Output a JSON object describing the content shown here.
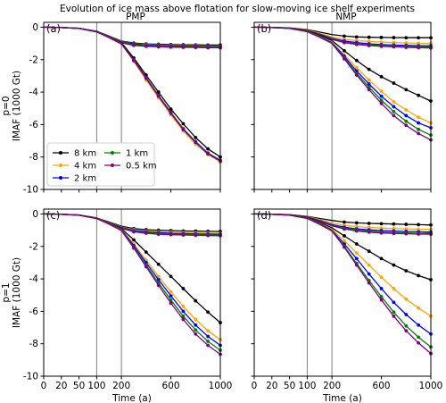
{
  "figure": {
    "title": "Evolution of ice mass above flotation for slow-moving ice shelf experiments"
  },
  "colors": {
    "8 km": "#000000",
    "4 km": "#ffa500",
    "2 km": "#0000ff",
    "1 km": "#008000",
    "0.5 km": "#800080",
    "vline": "#808080"
  },
  "chart_data": [
    {
      "type": "line",
      "panel": "(a)",
      "col_title": "PMP",
      "ylabel": "p=0\nIMAF (1000 Gt)",
      "xlabel": "",
      "xlim": [
        0,
        1000
      ],
      "ylim": [
        -10,
        0.3
      ],
      "xticks": [
        0,
        20,
        50,
        100,
        200,
        600,
        1000
      ],
      "xtick_labels": [
        "",
        "",
        "",
        "",
        "",
        "",
        ""
      ],
      "yticks": [
        0,
        -2,
        -4,
        -6,
        -8,
        -10
      ],
      "vlines": [
        100,
        200
      ],
      "legend": {
        "placement": "lower-left",
        "columns": 2,
        "entries": [
          "8 km",
          "4 km",
          "2 km",
          "1 km",
          "0.5 km"
        ]
      },
      "x": [
        0,
        20,
        50,
        100,
        150,
        200,
        300,
        400,
        500,
        600,
        700,
        800,
        900,
        1000
      ],
      "series": [
        {
          "name": "8 km",
          "values": [
            0,
            -0.02,
            -0.07,
            -0.25,
            -0.55,
            -0.85,
            -0.98,
            -1.03,
            -1.05,
            -1.07,
            -1.08,
            -1.09,
            -1.1,
            -1.1
          ]
        },
        {
          "name": "4 km",
          "values": [
            0,
            -0.02,
            -0.07,
            -0.26,
            -0.57,
            -0.88,
            -1.02,
            -1.07,
            -1.1,
            -1.12,
            -1.14,
            -1.15,
            -1.16,
            -1.17
          ]
        },
        {
          "name": "2 km",
          "values": [
            0,
            -0.02,
            -0.07,
            -0.27,
            -0.58,
            -0.9,
            -1.04,
            -1.1,
            -1.13,
            -1.15,
            -1.17,
            -1.18,
            -1.19,
            -1.2
          ]
        },
        {
          "name": "1 km",
          "values": [
            0,
            -0.02,
            -0.08,
            -0.28,
            -0.6,
            -0.93,
            -1.08,
            -1.14,
            -1.17,
            -1.19,
            -1.21,
            -1.22,
            -1.23,
            -1.24
          ]
        },
        {
          "name": "0.5 km",
          "values": [
            0,
            -0.02,
            -0.08,
            -0.29,
            -0.62,
            -0.96,
            -1.12,
            -1.18,
            -1.21,
            -1.23,
            -1.24,
            -1.25,
            -1.26,
            -1.27
          ]
        },
        {
          "name": "8 km",
          "values": [
            0,
            -0.02,
            -0.07,
            -0.25,
            -0.6,
            -0.95,
            -1.9,
            -2.95,
            -4.0,
            -5.05,
            -5.95,
            -6.8,
            -7.5,
            -8.0
          ]
        },
        {
          "name": "4 km",
          "values": [
            0,
            -0.02,
            -0.07,
            -0.26,
            -0.62,
            -1.0,
            -2.1,
            -3.25,
            -4.35,
            -5.4,
            -6.4,
            -7.2,
            -7.85,
            -8.3
          ]
        },
        {
          "name": "2 km",
          "values": [
            0,
            -0.02,
            -0.07,
            -0.27,
            -0.63,
            -1.02,
            -2.05,
            -3.15,
            -4.25,
            -5.3,
            -6.3,
            -7.1,
            -7.8,
            -8.25
          ]
        },
        {
          "name": "1 km",
          "values": [
            0,
            -0.02,
            -0.08,
            -0.28,
            -0.64,
            -1.03,
            -2.0,
            -3.1,
            -4.2,
            -5.25,
            -6.25,
            -7.05,
            -7.75,
            -8.2
          ]
        },
        {
          "name": "0.5 km",
          "values": [
            0,
            -0.02,
            -0.08,
            -0.29,
            -0.65,
            -1.04,
            -2.02,
            -3.12,
            -4.22,
            -5.27,
            -6.27,
            -7.07,
            -7.77,
            -8.22
          ]
        }
      ]
    },
    {
      "type": "line",
      "panel": "(b)",
      "col_title": "NMP",
      "ylabel": "",
      "xlabel": "",
      "xlim": [
        0,
        1000
      ],
      "ylim": [
        -10,
        0.3
      ],
      "xticks": [
        0,
        20,
        50,
        100,
        200,
        600,
        1000
      ],
      "xtick_labels": [
        "",
        "",
        "",
        "",
        "",
        "",
        ""
      ],
      "yticks": [
        0,
        -2,
        -4,
        -6,
        -8,
        -10
      ],
      "ytick_labels": [
        "",
        "",
        "",
        "",
        "",
        ""
      ],
      "vlines": [
        100,
        200
      ],
      "x": [
        0,
        20,
        50,
        100,
        150,
        200,
        300,
        400,
        500,
        600,
        700,
        800,
        900,
        1000
      ],
      "series": [
        {
          "name": "8 km",
          "values": [
            0,
            -0.01,
            -0.04,
            -0.15,
            -0.3,
            -0.45,
            -0.55,
            -0.6,
            -0.62,
            -0.63,
            -0.64,
            -0.65,
            -0.65,
            -0.65
          ]
        },
        {
          "name": "4 km",
          "values": [
            0,
            -0.01,
            -0.05,
            -0.18,
            -0.38,
            -0.6,
            -0.75,
            -0.83,
            -0.88,
            -0.92,
            -0.95,
            -0.97,
            -0.99,
            -1.0
          ]
        },
        {
          "name": "2 km",
          "values": [
            0,
            -0.01,
            -0.05,
            -0.2,
            -0.42,
            -0.68,
            -0.85,
            -0.95,
            -1.02,
            -1.07,
            -1.1,
            -1.12,
            -1.14,
            -1.15
          ]
        },
        {
          "name": "1 km",
          "values": [
            0,
            -0.01,
            -0.05,
            -0.21,
            -0.45,
            -0.72,
            -0.92,
            -1.02,
            -1.09,
            -1.13,
            -1.16,
            -1.18,
            -1.2,
            -1.22
          ]
        },
        {
          "name": "0.5 km",
          "values": [
            0,
            -0.01,
            -0.05,
            -0.22,
            -0.47,
            -0.75,
            -0.95,
            -1.06,
            -1.13,
            -1.18,
            -1.21,
            -1.24,
            -1.26,
            -1.28
          ]
        },
        {
          "name": "8 km",
          "values": [
            0,
            -0.02,
            -0.06,
            -0.22,
            -0.5,
            -0.82,
            -1.45,
            -2.05,
            -2.6,
            -3.05,
            -3.45,
            -3.85,
            -4.2,
            -4.55
          ]
        },
        {
          "name": "4 km",
          "values": [
            0,
            -0.02,
            -0.07,
            -0.25,
            -0.56,
            -0.92,
            -1.7,
            -2.5,
            -3.25,
            -3.95,
            -4.6,
            -5.1,
            -5.55,
            -5.9
          ]
        },
        {
          "name": "2 km",
          "values": [
            0,
            -0.02,
            -0.07,
            -0.26,
            -0.58,
            -0.95,
            -1.8,
            -2.7,
            -3.5,
            -4.25,
            -4.9,
            -5.45,
            -5.9,
            -6.2
          ]
        },
        {
          "name": "1 km",
          "values": [
            0,
            -0.02,
            -0.07,
            -0.27,
            -0.6,
            -0.98,
            -1.9,
            -2.85,
            -3.7,
            -4.5,
            -5.2,
            -5.8,
            -6.3,
            -6.65
          ]
        },
        {
          "name": "0.5 km",
          "values": [
            0,
            -0.02,
            -0.08,
            -0.28,
            -0.62,
            -1.0,
            -1.95,
            -2.95,
            -3.85,
            -4.7,
            -5.45,
            -6.05,
            -6.55,
            -6.95
          ]
        }
      ]
    },
    {
      "type": "line",
      "panel": "(c)",
      "col_title": "",
      "ylabel": "p=1\nIMAF (1000 Gt)",
      "xlabel": "Time (a)",
      "xlim": [
        0,
        1000
      ],
      "ylim": [
        -10,
        0.3
      ],
      "xticks": [
        0,
        20,
        50,
        100,
        200,
        600,
        1000
      ],
      "xtick_labels": [
        "0",
        "20",
        "50",
        "100",
        "200",
        "600",
        "1000"
      ],
      "yticks": [
        0,
        -2,
        -4,
        -6,
        -8,
        -10
      ],
      "vlines": [
        100,
        200
      ],
      "x": [
        0,
        20,
        50,
        100,
        150,
        200,
        300,
        400,
        500,
        600,
        700,
        800,
        900,
        1000
      ],
      "series": [
        {
          "name": "8 km",
          "values": [
            0,
            -0.02,
            -0.07,
            -0.25,
            -0.5,
            -0.75,
            -0.9,
            -0.97,
            -1.0,
            -1.03,
            -1.05,
            -1.06,
            -1.07,
            -1.08
          ]
        },
        {
          "name": "4 km",
          "values": [
            0,
            -0.02,
            -0.07,
            -0.26,
            -0.53,
            -0.8,
            -0.97,
            -1.05,
            -1.1,
            -1.13,
            -1.15,
            -1.17,
            -1.18,
            -1.19
          ]
        },
        {
          "name": "2 km",
          "values": [
            0,
            -0.02,
            -0.07,
            -0.27,
            -0.55,
            -0.83,
            -1.02,
            -1.1,
            -1.15,
            -1.19,
            -1.21,
            -1.23,
            -1.24,
            -1.25
          ]
        },
        {
          "name": "1 km",
          "values": [
            0,
            -0.02,
            -0.08,
            -0.28,
            -0.57,
            -0.86,
            -1.06,
            -1.15,
            -1.2,
            -1.24,
            -1.26,
            -1.28,
            -1.29,
            -1.3
          ]
        },
        {
          "name": "0.5 km",
          "values": [
            0,
            -0.02,
            -0.08,
            -0.29,
            -0.59,
            -0.89,
            -1.1,
            -1.19,
            -1.25,
            -1.28,
            -1.3,
            -1.32,
            -1.33,
            -1.34
          ]
        },
        {
          "name": "8 km",
          "values": [
            0,
            -0.02,
            -0.06,
            -0.24,
            -0.55,
            -0.9,
            -1.6,
            -2.35,
            -3.1,
            -3.85,
            -4.6,
            -5.35,
            -6.05,
            -6.7
          ]
        },
        {
          "name": "4 km",
          "values": [
            0,
            -0.02,
            -0.07,
            -0.25,
            -0.58,
            -0.95,
            -1.85,
            -2.85,
            -3.85,
            -4.8,
            -5.7,
            -6.5,
            -7.2,
            -7.75
          ]
        },
        {
          "name": "2 km",
          "values": [
            0,
            -0.02,
            -0.07,
            -0.26,
            -0.6,
            -0.98,
            -1.95,
            -3.0,
            -4.05,
            -5.05,
            -6.0,
            -6.85,
            -7.55,
            -8.1
          ]
        },
        {
          "name": "1 km",
          "values": [
            0,
            -0.02,
            -0.07,
            -0.27,
            -0.62,
            -1.0,
            -2.05,
            -3.15,
            -4.25,
            -5.3,
            -6.3,
            -7.15,
            -7.85,
            -8.4
          ]
        },
        {
          "name": "0.5 km",
          "values": [
            0,
            -0.02,
            -0.08,
            -0.28,
            -0.63,
            -1.02,
            -2.1,
            -3.25,
            -4.4,
            -5.5,
            -6.5,
            -7.4,
            -8.1,
            -8.65
          ]
        }
      ]
    },
    {
      "type": "line",
      "panel": "(d)",
      "col_title": "",
      "ylabel": "",
      "xlabel": "Time (a)",
      "xlim": [
        0,
        1000
      ],
      "ylim": [
        -10,
        0.3
      ],
      "xticks": [
        0,
        20,
        50,
        100,
        200,
        600,
        1000
      ],
      "xtick_labels": [
        "0",
        "20",
        "50",
        "100",
        "200",
        "600",
        "1000"
      ],
      "yticks": [
        0,
        -2,
        -4,
        -6,
        -8,
        -10
      ],
      "ytick_labels": [
        "",
        "",
        "",
        "",
        "",
        ""
      ],
      "vlines": [
        100,
        200
      ],
      "x": [
        0,
        20,
        50,
        100,
        150,
        200,
        300,
        400,
        500,
        600,
        700,
        800,
        900,
        1000
      ],
      "series": [
        {
          "name": "8 km",
          "values": [
            0,
            -0.01,
            -0.04,
            -0.15,
            -0.28,
            -0.4,
            -0.5,
            -0.55,
            -0.58,
            -0.6,
            -0.62,
            -0.64,
            -0.66,
            -0.68
          ]
        },
        {
          "name": "4 km",
          "values": [
            0,
            -0.01,
            -0.05,
            -0.17,
            -0.35,
            -0.55,
            -0.7,
            -0.78,
            -0.83,
            -0.87,
            -0.9,
            -0.92,
            -0.94,
            -0.95
          ]
        },
        {
          "name": "2 km",
          "values": [
            0,
            -0.01,
            -0.05,
            -0.19,
            -0.4,
            -0.65,
            -0.82,
            -0.92,
            -0.98,
            -1.02,
            -1.05,
            -1.08,
            -1.1,
            -1.12
          ]
        },
        {
          "name": "1 km",
          "values": [
            0,
            -0.01,
            -0.05,
            -0.2,
            -0.43,
            -0.7,
            -0.88,
            -0.99,
            -1.06,
            -1.11,
            -1.14,
            -1.17,
            -1.19,
            -1.2
          ]
        },
        {
          "name": "0.5 km",
          "values": [
            0,
            -0.01,
            -0.05,
            -0.21,
            -0.45,
            -0.73,
            -0.93,
            -1.05,
            -1.12,
            -1.17,
            -1.2,
            -1.22,
            -1.24,
            -1.25
          ]
        },
        {
          "name": "8 km",
          "values": [
            0,
            -0.02,
            -0.06,
            -0.22,
            -0.52,
            -0.85,
            -1.35,
            -1.85,
            -2.3,
            -2.75,
            -3.15,
            -3.5,
            -3.8,
            -4.05
          ]
        },
        {
          "name": "4 km",
          "values": [
            0,
            -0.02,
            -0.07,
            -0.25,
            -0.57,
            -0.95,
            -1.65,
            -2.4,
            -3.15,
            -3.9,
            -4.6,
            -5.25,
            -5.8,
            -6.3
          ]
        },
        {
          "name": "2 km",
          "values": [
            0,
            -0.02,
            -0.07,
            -0.26,
            -0.6,
            -1.0,
            -1.85,
            -2.75,
            -3.7,
            -4.6,
            -5.45,
            -6.2,
            -6.85,
            -7.4
          ]
        },
        {
          "name": "1 km",
          "values": [
            0,
            -0.02,
            -0.07,
            -0.27,
            -0.62,
            -1.03,
            -2.0,
            -3.05,
            -4.1,
            -5.1,
            -6.05,
            -6.9,
            -7.6,
            -8.2
          ]
        },
        {
          "name": "0.5 km",
          "values": [
            0,
            -0.02,
            -0.08,
            -0.28,
            -0.64,
            -1.05,
            -2.05,
            -3.15,
            -4.25,
            -5.3,
            -6.3,
            -7.2,
            -7.95,
            -8.6
          ]
        }
      ]
    }
  ]
}
